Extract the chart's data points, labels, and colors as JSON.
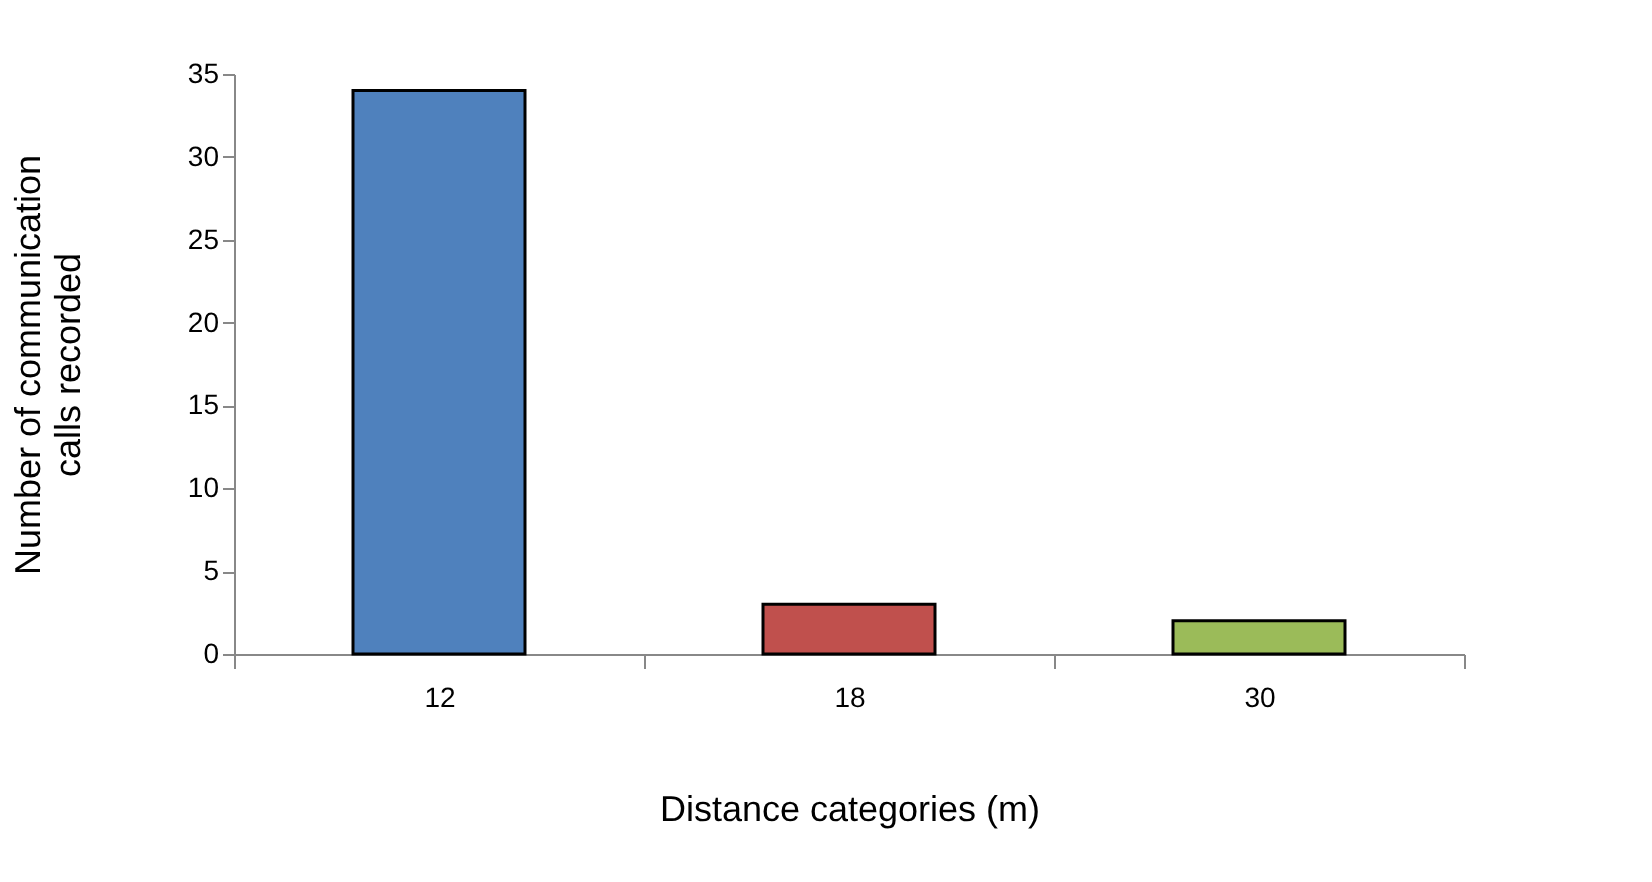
{
  "chart_data": {
    "type": "bar",
    "xlabel": "Distance categories (m)",
    "ylabel": "Number of communication calls recorded",
    "categories": [
      "12",
      "18",
      "30"
    ],
    "values": [
      34,
      3,
      2
    ],
    "colors": [
      "#4f81bd",
      "#c0504d",
      "#9bbb59"
    ],
    "ylim": [
      0,
      35
    ],
    "yticks": [
      0,
      5,
      10,
      15,
      20,
      25,
      30,
      35
    ],
    "grid": false
  }
}
